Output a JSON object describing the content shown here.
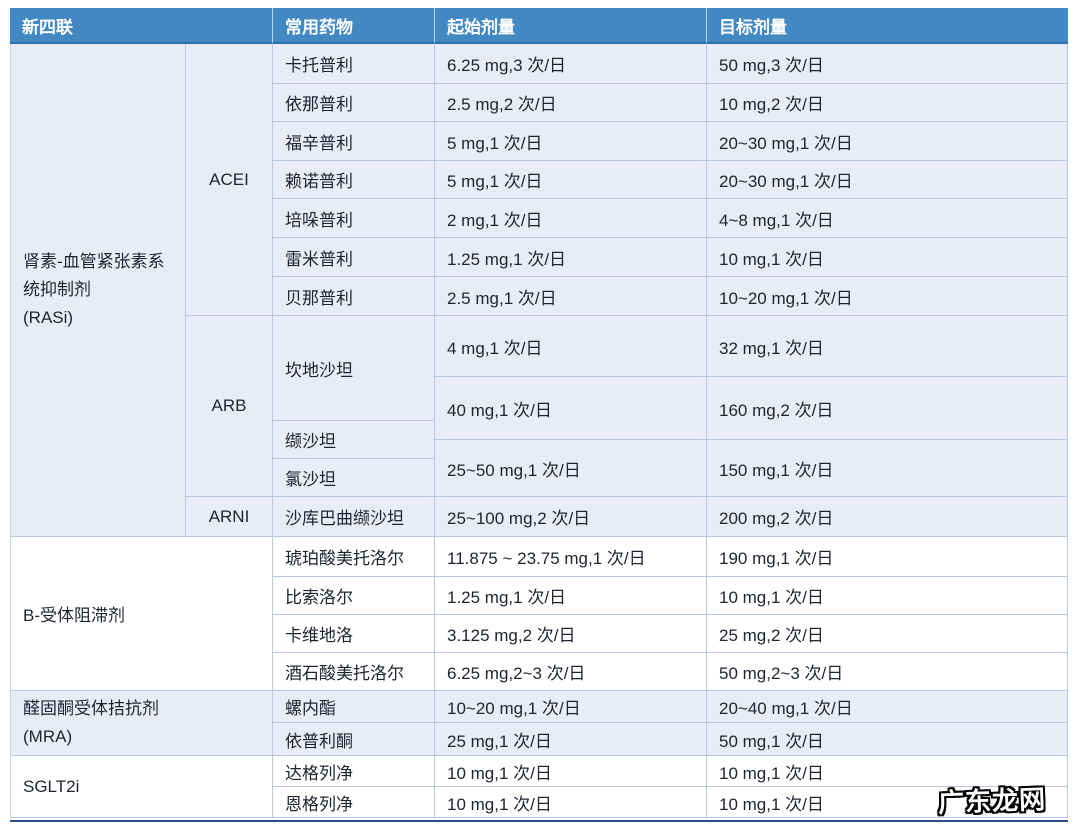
{
  "table": {
    "headers": {
      "group": "新四联",
      "drug": "常用药物",
      "start": "起始剂量",
      "target": "目标剂量"
    },
    "rasi": {
      "group_name": "肾素-血管紧张素系统抑制剂",
      "group_abbr": "(RASi)",
      "acei_label": "ACEI",
      "arb_label": "ARB",
      "arni_label": "ARNI",
      "acei_rows": [
        {
          "drug": "卡托普利",
          "start": "6.25 mg,3 次/日",
          "target": "50 mg,3 次/日"
        },
        {
          "drug": "依那普利",
          "start": "2.5 mg,2 次/日",
          "target": "10 mg,2 次/日"
        },
        {
          "drug": "福辛普利",
          "start": "5 mg,1 次/日",
          "target": "20~30 mg,1 次/日"
        },
        {
          "drug": "赖诺普利",
          "start": "5 mg,1 次/日",
          "target": "20~30 mg,1 次/日"
        },
        {
          "drug": "培哚普利",
          "start": "2 mg,1 次/日",
          "target": "4~8 mg,1 次/日"
        },
        {
          "drug": "雷米普利",
          "start": "1.25 mg,1 次/日",
          "target": "10 mg,1 次/日"
        },
        {
          "drug": "贝那普利",
          "start": "2.5 mg,1 次/日",
          "target": "10~20 mg,1 次/日"
        }
      ],
      "arb_drugs": [
        "坎地沙坦",
        "缬沙坦",
        "氯沙坦"
      ],
      "arb_doses": [
        {
          "start": "4 mg,1 次/日",
          "target": "32 mg,1 次/日"
        },
        {
          "start": "40 mg,1 次/日",
          "target": "160 mg,2 次/日"
        },
        {
          "start": "25~50 mg,1 次/日",
          "target": "150 mg,1 次/日"
        }
      ],
      "arni_row": {
        "drug": "沙库巴曲缬沙坦",
        "start": "25~100 mg,2 次/日",
        "target": "200 mg,2 次/日"
      }
    },
    "beta_blocker": {
      "group_name": "B-受体阻滞剂",
      "rows": [
        {
          "drug": "琥珀酸美托洛尔",
          "start": "11.875 ~ 23.75 mg,1 次/日",
          "target": "190 mg,1 次/日"
        },
        {
          "drug": "比索洛尔",
          "start": "1.25 mg,1 次/日",
          "target": "10 mg,1 次/日"
        },
        {
          "drug": "卡维地洛",
          "start": "3.125 mg,2 次/日",
          "target": "25 mg,2 次/日"
        },
        {
          "drug": "酒石酸美托洛尔",
          "start": "6.25 mg,2~3 次/日",
          "target": "50 mg,2~3 次/日"
        }
      ]
    },
    "mra": {
      "group_name": "醛固酮受体拮抗剂",
      "group_abbr": "(MRA)",
      "rows": [
        {
          "drug": "螺内酯",
          "start": "10~20 mg,1 次/日",
          "target": "20~40 mg,1 次/日"
        },
        {
          "drug": "依普利酮",
          "start": "25 mg,1 次/日",
          "target": "50 mg,1 次/日"
        }
      ]
    },
    "sglt2i": {
      "group_name": "SGLT2i",
      "rows": [
        {
          "drug": "达格列净",
          "start": "10 mg,1 次/日",
          "target": "10 mg,1 次/日"
        },
        {
          "drug": "恩格列净",
          "start": "10 mg,1 次/日",
          "target": "10 mg,1 次/日"
        }
      ]
    },
    "colors": {
      "header_bg": "#4288c3",
      "header_text": "#ffffff",
      "section_alt_bg": "#e9ecf7",
      "border": "#b9c8e1",
      "bottom_rule": "#2c4f8c"
    }
  },
  "watermark": {
    "text": "广东龙网"
  }
}
